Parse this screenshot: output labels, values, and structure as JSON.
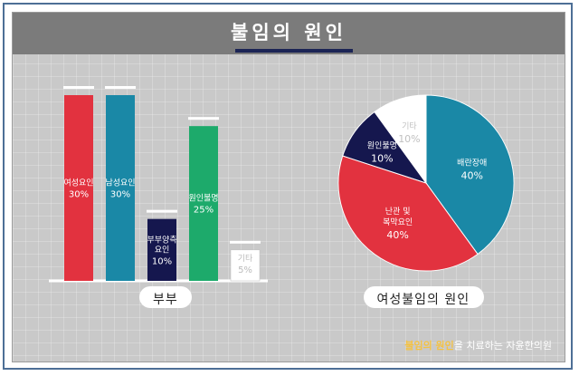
{
  "title": "불임의 원인",
  "colors": {
    "red": "#e2323f",
    "teal": "#1a88a6",
    "navy": "#15174e",
    "green": "#1daa6b",
    "white": "#ffffff",
    "grey_text": "#c8c8c8"
  },
  "chart_data": [
    {
      "type": "bar",
      "title": "부부",
      "categories": [
        [
          "여성요인"
        ],
        [
          "남성요인"
        ],
        [
          "부부양측",
          "요인"
        ],
        [
          "원인불명"
        ],
        [
          "기타"
        ]
      ],
      "values": [
        30,
        30,
        10,
        25,
        5
      ],
      "value_labels": [
        "30%",
        "30%",
        "10%",
        "25%",
        "5%"
      ],
      "colors": [
        "#e2323f",
        "#1a88a6",
        "#15174e",
        "#1daa6b",
        "#ffffff"
      ],
      "label_colors": [
        "#ffffff",
        "#ffffff",
        "#ffffff",
        "#ffffff",
        "#bbbbbb"
      ],
      "ylim": [
        0,
        30
      ]
    },
    {
      "type": "pie",
      "title": "여성불임의 원인",
      "slices": [
        {
          "label": [
            "배란장애"
          ],
          "value": 40,
          "value_label": "40%",
          "color": "#1a88a6",
          "text_color": "#ffffff"
        },
        {
          "label": [
            "난관 및",
            "복막요인"
          ],
          "value": 40,
          "value_label": "40%",
          "color": "#e2323f",
          "text_color": "#ffffff"
        },
        {
          "label": [
            "원인불명"
          ],
          "value": 10,
          "value_label": "10%",
          "color": "#15174e",
          "text_color": "#ffffff"
        },
        {
          "label": [
            "기타"
          ],
          "value": 10,
          "value_label": "10%",
          "color": "#ffffff",
          "text_color": "#c0c0c0"
        }
      ]
    }
  ],
  "footer": {
    "highlight": "불임의 원인",
    "rest": "을 치료하는 자윤한의원"
  }
}
